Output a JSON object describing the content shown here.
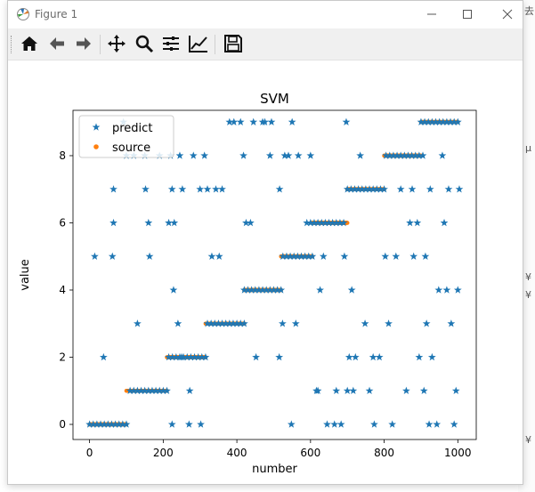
{
  "window": {
    "title": "Figure 1"
  },
  "toolbar": {
    "buttons": [
      {
        "name": "home-icon",
        "tooltip": "Home"
      },
      {
        "name": "back-icon",
        "tooltip": "Back"
      },
      {
        "name": "forward-icon",
        "tooltip": "Forward"
      },
      {
        "name": "pan-icon",
        "tooltip": "Pan"
      },
      {
        "name": "zoom-icon",
        "tooltip": "Zoom"
      },
      {
        "name": "subplots-icon",
        "tooltip": "Subplots"
      },
      {
        "name": "customize-icon",
        "tooltip": "Customize"
      },
      {
        "name": "save-icon",
        "tooltip": "Save"
      }
    ]
  },
  "colors": {
    "predict": "#1f77b4",
    "source": "#ff7f0e"
  },
  "chart_data": {
    "type": "scatter",
    "title": "SVM",
    "xlabel": "number",
    "ylabel": "value",
    "xlim": [
      -45,
      1050
    ],
    "ylim": [
      -0.45,
      9.35
    ],
    "xticks": [
      0,
      200,
      400,
      600,
      800,
      1000
    ],
    "yticks": [
      0,
      2,
      4,
      6,
      8
    ],
    "legend_position": "top-left",
    "series": [
      {
        "name": "predict",
        "marker": "star",
        "points": [
          [
            0,
            0
          ],
          [
            10,
            0
          ],
          [
            20,
            0
          ],
          [
            30,
            0
          ],
          [
            40,
            0
          ],
          [
            50,
            0
          ],
          [
            60,
            0
          ],
          [
            70,
            0
          ],
          [
            80,
            0
          ],
          [
            90,
            0
          ],
          [
            100,
            0
          ],
          [
            110,
            1
          ],
          [
            120,
            1
          ],
          [
            130,
            1
          ],
          [
            140,
            1
          ],
          [
            150,
            1
          ],
          [
            160,
            1
          ],
          [
            170,
            1
          ],
          [
            180,
            1
          ],
          [
            190,
            1
          ],
          [
            200,
            1
          ],
          [
            210,
            1
          ],
          [
            215,
            2
          ],
          [
            225,
            2
          ],
          [
            235,
            2
          ],
          [
            245,
            2
          ],
          [
            255,
            2
          ],
          [
            265,
            2
          ],
          [
            275,
            2
          ],
          [
            285,
            2
          ],
          [
            295,
            2
          ],
          [
            305,
            2
          ],
          [
            315,
            2
          ],
          [
            320,
            3
          ],
          [
            330,
            3
          ],
          [
            340,
            3
          ],
          [
            350,
            3
          ],
          [
            360,
            3
          ],
          [
            370,
            3
          ],
          [
            380,
            3
          ],
          [
            390,
            3
          ],
          [
            400,
            3
          ],
          [
            410,
            3
          ],
          [
            420,
            3
          ],
          [
            420,
            4
          ],
          [
            430,
            4
          ],
          [
            440,
            4
          ],
          [
            450,
            4
          ],
          [
            460,
            4
          ],
          [
            470,
            4
          ],
          [
            480,
            4
          ],
          [
            490,
            4
          ],
          [
            500,
            4
          ],
          [
            510,
            4
          ],
          [
            520,
            4
          ],
          [
            525,
            5
          ],
          [
            535,
            5
          ],
          [
            545,
            5
          ],
          [
            555,
            5
          ],
          [
            565,
            5
          ],
          [
            575,
            5
          ],
          [
            585,
            5
          ],
          [
            595,
            5
          ],
          [
            605,
            5
          ],
          [
            590,
            6
          ],
          [
            600,
            6
          ],
          [
            610,
            6
          ],
          [
            620,
            6
          ],
          [
            630,
            6
          ],
          [
            640,
            6
          ],
          [
            650,
            6
          ],
          [
            660,
            6
          ],
          [
            670,
            6
          ],
          [
            680,
            6
          ],
          [
            690,
            6
          ],
          [
            700,
            7
          ],
          [
            710,
            7
          ],
          [
            720,
            7
          ],
          [
            730,
            7
          ],
          [
            740,
            7
          ],
          [
            750,
            7
          ],
          [
            760,
            7
          ],
          [
            770,
            7
          ],
          [
            780,
            7
          ],
          [
            790,
            7
          ],
          [
            800,
            7
          ],
          [
            805,
            8
          ],
          [
            815,
            8
          ],
          [
            825,
            8
          ],
          [
            835,
            8
          ],
          [
            845,
            8
          ],
          [
            855,
            8
          ],
          [
            865,
            8
          ],
          [
            875,
            8
          ],
          [
            885,
            8
          ],
          [
            895,
            8
          ],
          [
            900,
            9
          ],
          [
            910,
            9
          ],
          [
            920,
            9
          ],
          [
            930,
            9
          ],
          [
            940,
            9
          ],
          [
            950,
            9
          ],
          [
            960,
            9
          ],
          [
            970,
            9
          ],
          [
            980,
            9
          ],
          [
            990,
            9
          ],
          [
            1000,
            9
          ],
          [
            38,
            2
          ],
          [
            14,
            5
          ],
          [
            62,
            5
          ],
          [
            65,
            6
          ],
          [
            65,
            7
          ],
          [
            92,
            9
          ],
          [
            100,
            8
          ],
          [
            120,
            8
          ],
          [
            130,
            3
          ],
          [
            150,
            8
          ],
          [
            160,
            6
          ],
          [
            152,
            7
          ],
          [
            163,
            5
          ],
          [
            190,
            8
          ],
          [
            215,
            6
          ],
          [
            220,
            8
          ],
          [
            224,
            0
          ],
          [
            228,
            4
          ],
          [
            224,
            7
          ],
          [
            230,
            6
          ],
          [
            240,
            3
          ],
          [
            250,
            2
          ],
          [
            245,
            8
          ],
          [
            272,
            1
          ],
          [
            252,
            7
          ],
          [
            270,
            0
          ],
          [
            282,
            8
          ],
          [
            300,
            7
          ],
          [
            302,
            0
          ],
          [
            312,
            8
          ],
          [
            320,
            7
          ],
          [
            332,
            5
          ],
          [
            343,
            7
          ],
          [
            352,
            5
          ],
          [
            360,
            7
          ],
          [
            380,
            9
          ],
          [
            392,
            9
          ],
          [
            410,
            9
          ],
          [
            418,
            8
          ],
          [
            425,
            6
          ],
          [
            437,
            6
          ],
          [
            445,
            9
          ],
          [
            452,
            2
          ],
          [
            470,
            9
          ],
          [
            476,
            9
          ],
          [
            490,
            8
          ],
          [
            494,
            9
          ],
          [
            515,
            2
          ],
          [
            516,
            7
          ],
          [
            524,
            3
          ],
          [
            530,
            8
          ],
          [
            540,
            8
          ],
          [
            548,
            0
          ],
          [
            550,
            9
          ],
          [
            560,
            3
          ],
          [
            567,
            8
          ],
          [
            600,
            8
          ],
          [
            616,
            1
          ],
          [
            620,
            1
          ],
          [
            626,
            4
          ],
          [
            635,
            5
          ],
          [
            645,
            0
          ],
          [
            665,
            0
          ],
          [
            670,
            1
          ],
          [
            683,
            0
          ],
          [
            692,
            5
          ],
          [
            697,
            9
          ],
          [
            700,
            1
          ],
          [
            705,
            2
          ],
          [
            712,
            4
          ],
          [
            716,
            1
          ],
          [
            722,
            2
          ],
          [
            735,
            8
          ],
          [
            748,
            3
          ],
          [
            760,
            1
          ],
          [
            770,
            2
          ],
          [
            773,
            0
          ],
          [
            787,
            2
          ],
          [
            803,
            5
          ],
          [
            812,
            3
          ],
          [
            822,
            0
          ],
          [
            832,
            5
          ],
          [
            845,
            7
          ],
          [
            860,
            1
          ],
          [
            870,
            6
          ],
          [
            876,
            7
          ],
          [
            880,
            5
          ],
          [
            890,
            6
          ],
          [
            895,
            2
          ],
          [
            905,
            8
          ],
          [
            908,
            1
          ],
          [
            912,
            5
          ],
          [
            915,
            3
          ],
          [
            922,
            0
          ],
          [
            925,
            7
          ],
          [
            930,
            2
          ],
          [
            943,
            0
          ],
          [
            948,
            4
          ],
          [
            958,
            8
          ],
          [
            963,
            6
          ],
          [
            970,
            4
          ],
          [
            975,
            7
          ],
          [
            982,
            3
          ],
          [
            990,
            0
          ],
          [
            995,
            1
          ],
          [
            1000,
            4
          ],
          [
            1004,
            7
          ]
        ]
      },
      {
        "name": "source",
        "marker": "dot",
        "segments": [
          {
            "x_from": 0,
            "x_to": 100,
            "y": 0
          },
          {
            "x_from": 100,
            "x_to": 210,
            "y": 1
          },
          {
            "x_from": 210,
            "x_to": 315,
            "y": 2
          },
          {
            "x_from": 315,
            "x_to": 420,
            "y": 3
          },
          {
            "x_from": 420,
            "x_to": 520,
            "y": 4
          },
          {
            "x_from": 520,
            "x_to": 605,
            "y": 5
          },
          {
            "x_from": 605,
            "x_to": 700,
            "y": 6
          },
          {
            "x_from": 700,
            "x_to": 800,
            "y": 7
          },
          {
            "x_from": 800,
            "x_to": 900,
            "y": 8
          },
          {
            "x_from": 900,
            "x_to": 1000,
            "y": 9
          }
        ]
      }
    ]
  }
}
